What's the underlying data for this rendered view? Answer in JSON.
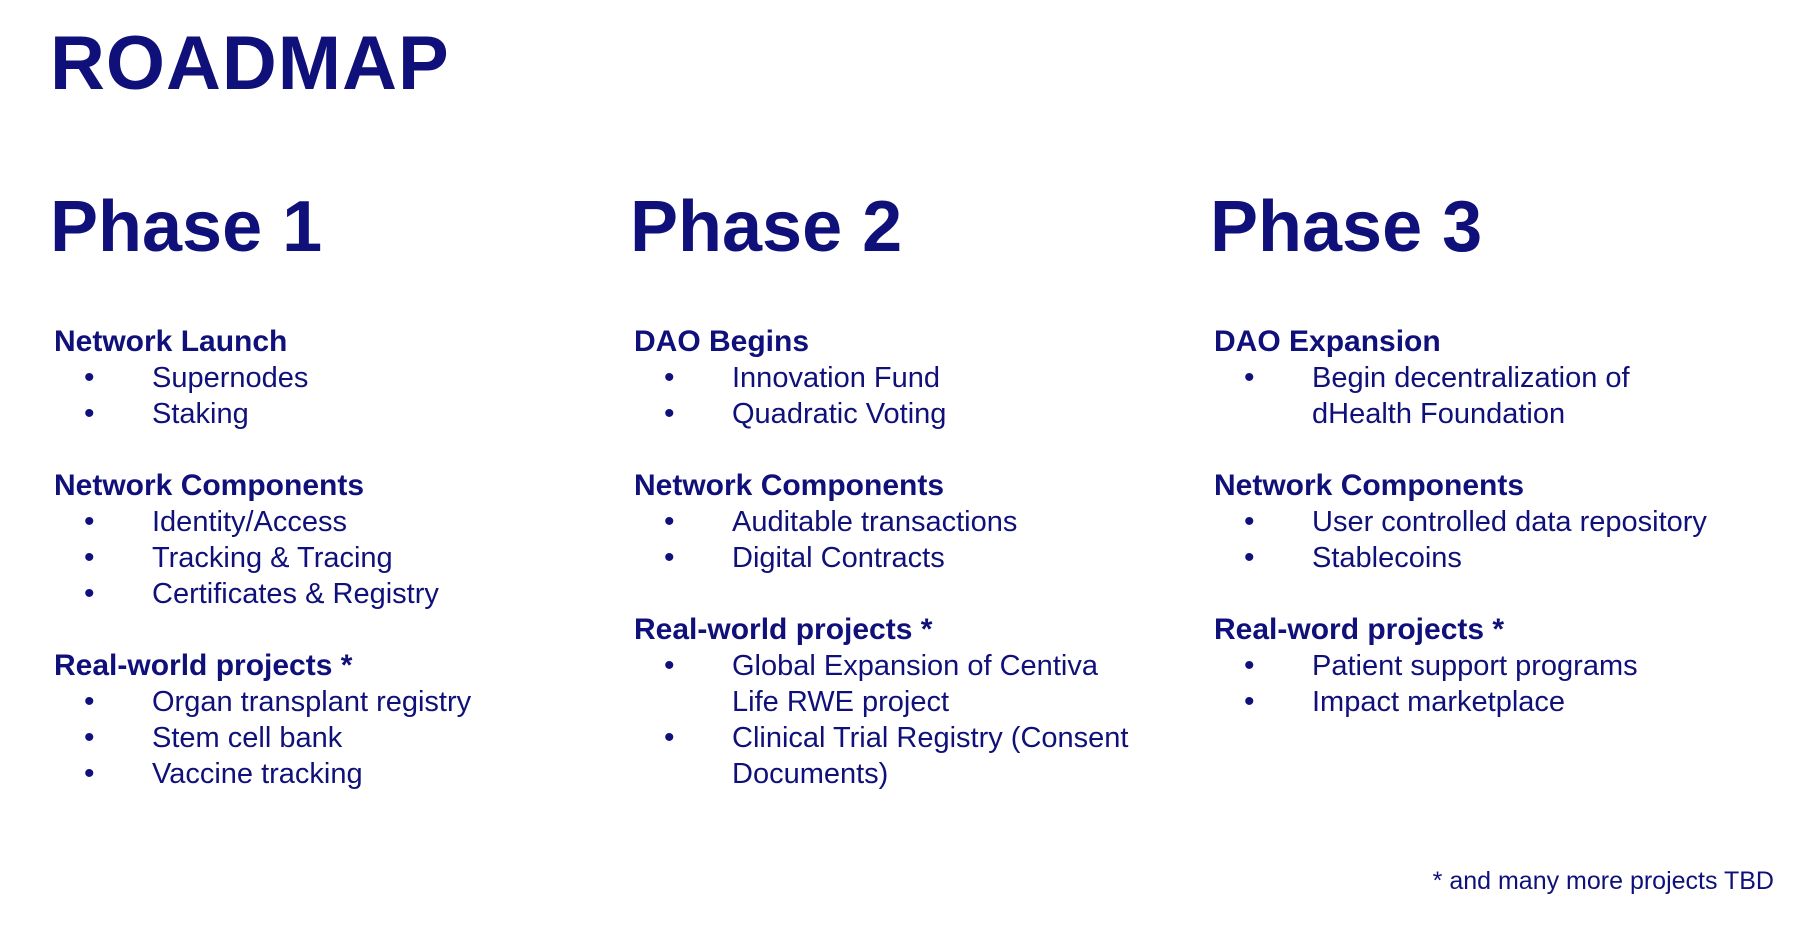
{
  "title": "ROADMAP",
  "phases": [
    {
      "title": "Phase 1",
      "sections": [
        {
          "title": "Network Launch",
          "items": [
            "Supernodes",
            "Staking"
          ]
        },
        {
          "title": "Network Components",
          "items": [
            "Identity/Access",
            "Tracking & Tracing",
            "Certificates & Registry"
          ]
        },
        {
          "title": "Real-world projects *",
          "items": [
            "Organ transplant registry",
            "Stem cell bank",
            "Vaccine tracking"
          ]
        }
      ]
    },
    {
      "title": "Phase 2",
      "sections": [
        {
          "title": "DAO Begins",
          "items": [
            "Innovation Fund",
            "Quadratic Voting"
          ]
        },
        {
          "title": "Network Components",
          "items": [
            "Auditable transactions",
            "Digital Contracts"
          ]
        },
        {
          "title": "Real-world projects *",
          "items": [
            "Global Expansion of Centiva Life RWE project",
            "Clinical Trial Registry (Consent Documents)"
          ]
        }
      ]
    },
    {
      "title": "Phase 3",
      "sections": [
        {
          "title": "DAO Expansion",
          "items": [
            "Begin decentralization of dHealth Foundation"
          ]
        },
        {
          "title": "Network Components",
          "items": [
            "User controlled data repository",
            "Stablecoins"
          ]
        },
        {
          "title": "Real-word projects *",
          "items": [
            "Patient support programs",
            "Impact marketplace"
          ]
        }
      ]
    }
  ],
  "footnote": "* and many more projects TBD",
  "colors": {
    "text": "#10107a",
    "background": "#ffffff"
  }
}
